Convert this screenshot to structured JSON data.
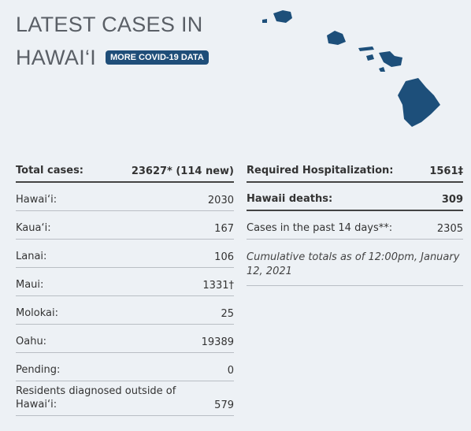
{
  "header": {
    "title_line1": "LATEST CASES IN",
    "title_line2": "HAWAI‘I",
    "button": "MORE COVID-19 DATA"
  },
  "left": {
    "rows": [
      {
        "label": "Total cases:",
        "value": "23627* (114 new)"
      },
      {
        "label": "Hawai‘i:",
        "value": "2030"
      },
      {
        "label": "Kaua‘i:",
        "value": "167"
      },
      {
        "label": "Lanai:",
        "value": "106"
      },
      {
        "label": "Maui:",
        "value": "1331†"
      },
      {
        "label": "Molokai:",
        "value": "25"
      },
      {
        "label": "Oahu:",
        "value": "19389"
      },
      {
        "label": "Pending:",
        "value": "0"
      },
      {
        "label": "Residents diagnosed outside of Hawai‘i:",
        "value": "579"
      }
    ]
  },
  "right": {
    "rows": [
      {
        "label": "Required Hospitalization:",
        "value": "1561‡"
      },
      {
        "label": "Hawaii deaths:",
        "value": "309"
      },
      {
        "label": "Cases in the past 14 days**:",
        "value": "2305"
      }
    ],
    "note": "Cumulative totals as of 12:00pm, January 12, 2021"
  }
}
